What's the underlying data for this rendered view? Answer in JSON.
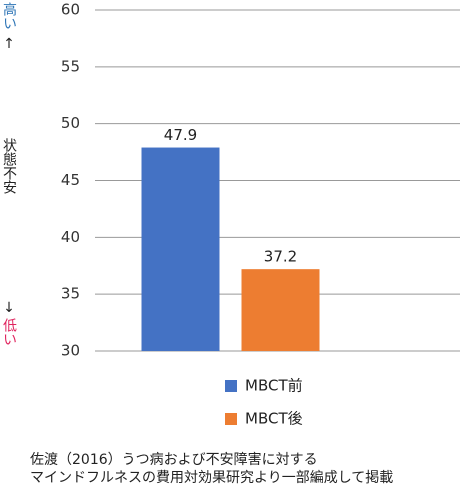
{
  "chart_data": {
    "type": "bar",
    "categories": [
      null
    ],
    "series": [
      {
        "name": "MBCT前",
        "color": "#4472c4",
        "values": [
          47.9
        ]
      },
      {
        "name": "MBCT後",
        "color": "#ed7d31",
        "values": [
          37.2
        ]
      }
    ],
    "ylim": [
      30,
      60
    ],
    "yticks": [
      30,
      35,
      40,
      45,
      50,
      55,
      60
    ],
    "grid": true,
    "y_label": "状態不安",
    "y_high": {
      "text": "高い",
      "arrow": "↑",
      "color": "#2e75b6"
    },
    "y_low": {
      "text": "低い",
      "arrow": "↓",
      "color": "#e0245e"
    },
    "source": [
      "佐渡（2016）うつ病および不安障害に対する",
      "マインドフルネスの費用対効果研究より一部編成して掲載"
    ]
  }
}
